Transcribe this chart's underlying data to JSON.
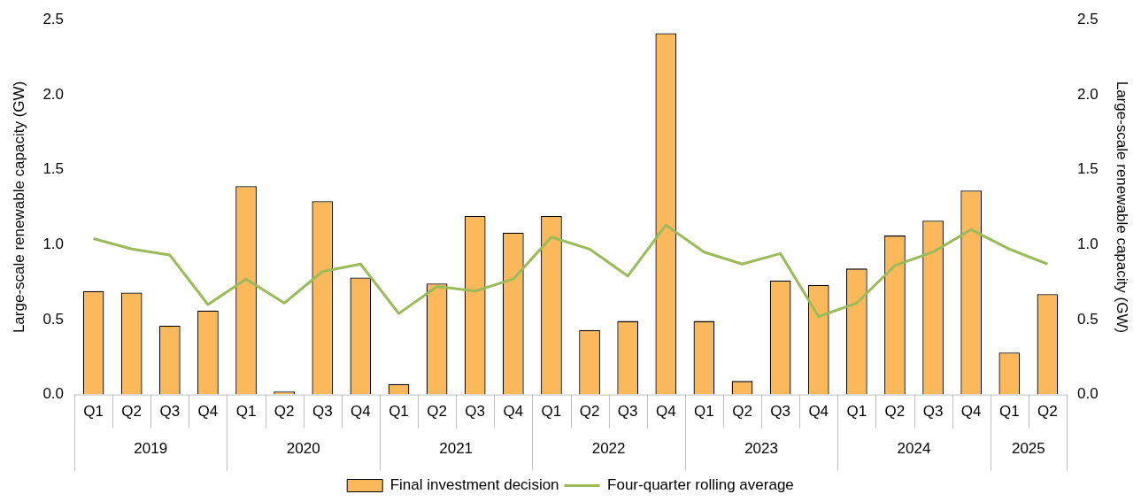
{
  "chart_data": {
    "type": "bar",
    "ylabel": "Large-scale renewable capacity (GW)",
    "y2label": "Large-scale renewable capacity (GW)",
    "categories": [
      "Q1",
      "Q2",
      "Q3",
      "Q4",
      "Q1",
      "Q2",
      "Q3",
      "Q4",
      "Q1",
      "Q2",
      "Q3",
      "Q4",
      "Q1",
      "Q2",
      "Q3",
      "Q4",
      "Q1",
      "Q2",
      "Q3",
      "Q4",
      "Q1",
      "Q2",
      "Q3",
      "Q4",
      "Q1",
      "Q2"
    ],
    "series": [
      {
        "name": "Final investment decision",
        "color": "#fbb95c",
        "values": [
          0.69,
          0.68,
          0.46,
          0.56,
          1.39,
          0.02,
          1.29,
          0.78,
          0.07,
          0.74,
          1.19,
          1.08,
          1.19,
          0.43,
          0.49,
          2.41,
          0.49,
          0.09,
          0.76,
          0.73,
          0.84,
          1.06,
          1.16,
          1.36,
          0.28,
          0.67
        ]
      },
      {
        "name": "Four-quarter rolling average",
        "type": "line",
        "axis": "y2",
        "color": "#9bbb59",
        "values": [
          1.04,
          0.97,
          0.93,
          0.6,
          0.77,
          0.61,
          0.82,
          0.87,
          0.54,
          0.72,
          0.69,
          0.77,
          1.05,
          0.97,
          0.79,
          1.13,
          0.95,
          0.87,
          0.94,
          0.52,
          0.61,
          0.86,
          0.95,
          1.1,
          0.97,
          0.87
        ]
      }
    ],
    "annotations": [
      "2019",
      "2020",
      "2021",
      "2022",
      "2023",
      "2024",
      "2025"
    ],
    "ylim": [
      0,
      2.5
    ],
    "yticks": [
      {
        "value": 0,
        "label": "0.0"
      },
      {
        "value": 0.5,
        "label": "0.5"
      },
      {
        "value": 1,
        "label": "1.0"
      },
      {
        "value": 1.5,
        "label": "1.5"
      },
      {
        "value": 2,
        "label": "2.0"
      },
      {
        "value": 2.5,
        "label": "2.5"
      }
    ],
    "y2lim": [
      0,
      2.5
    ],
    "y2ticks": [
      {
        "value": 0,
        "label": "0.0"
      },
      {
        "value": 0.5,
        "label": "0.5"
      },
      {
        "value": 1,
        "label": "1.0"
      },
      {
        "value": 1.5,
        "label": "1.5"
      },
      {
        "value": 2,
        "label": "2.0"
      },
      {
        "value": 2.5,
        "label": "2.5"
      }
    ],
    "grid": false,
    "legend": "bottom",
    "marker": "none",
    "line_style": "solid"
  }
}
